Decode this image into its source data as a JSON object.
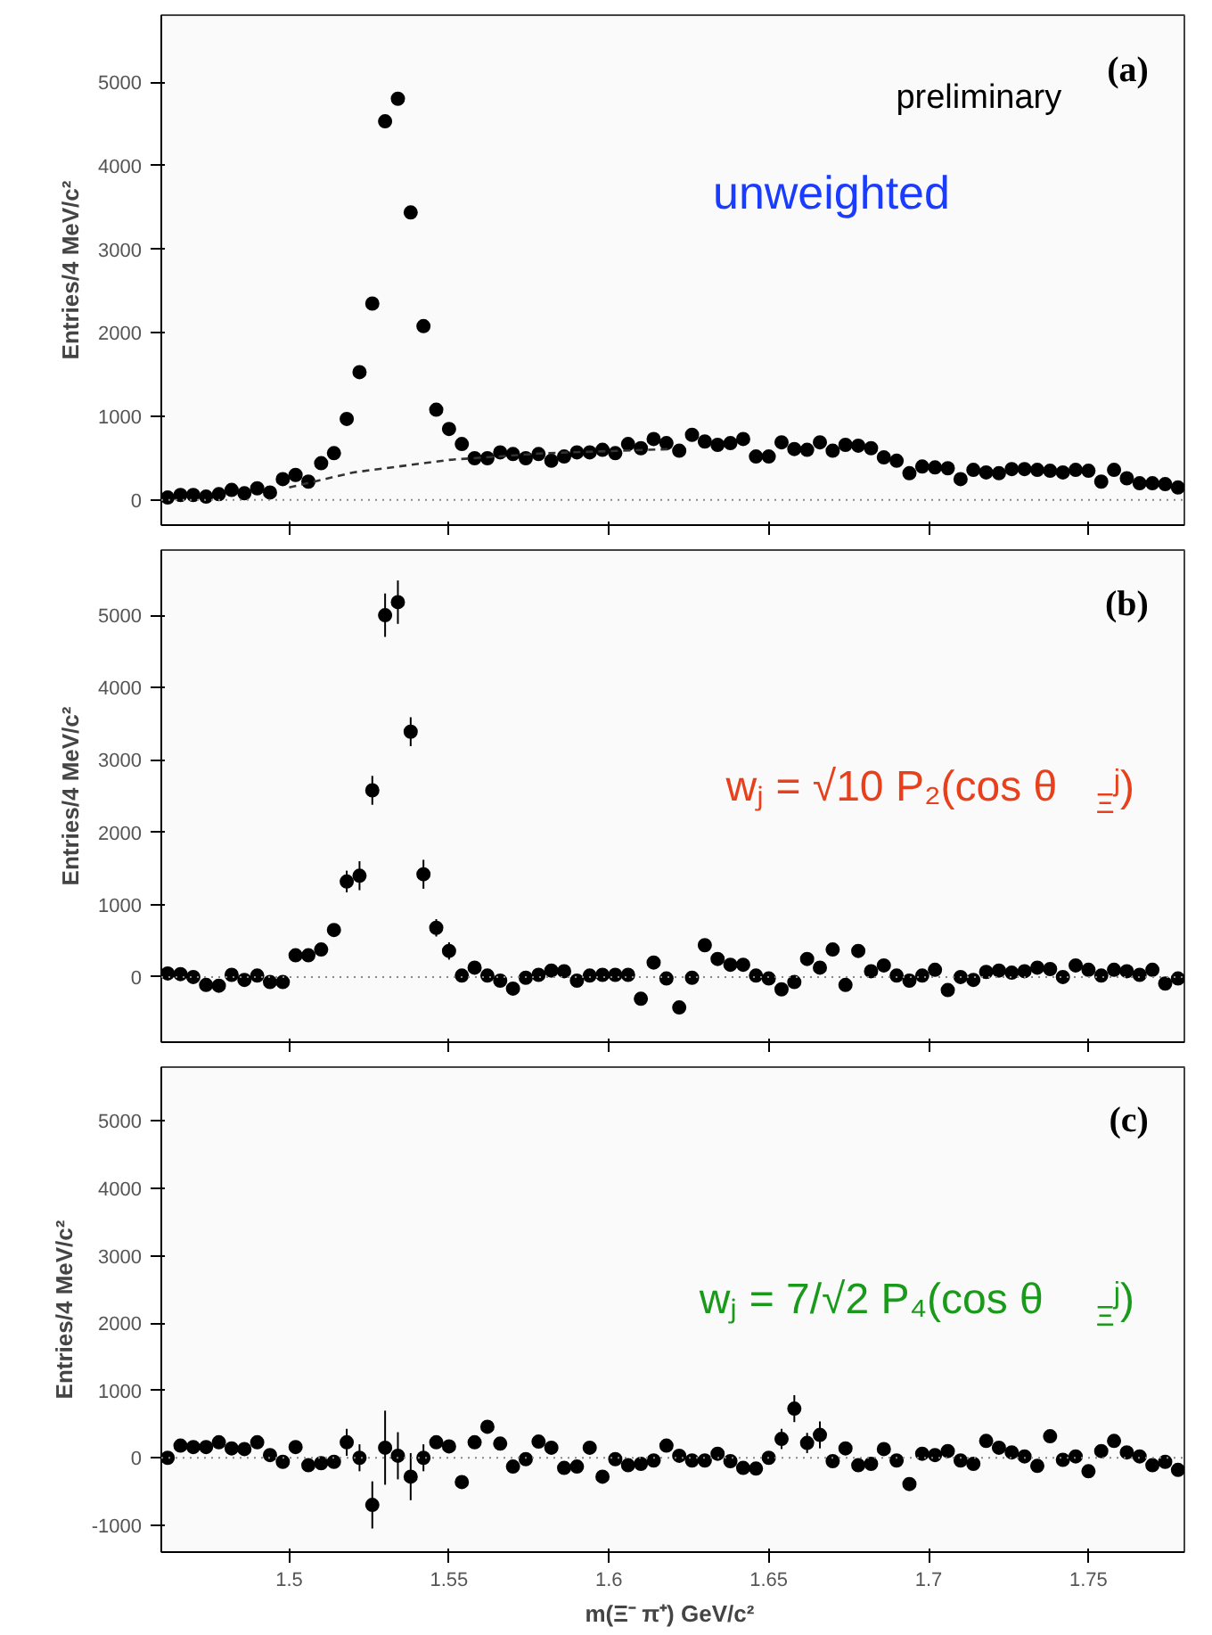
{
  "chart_data": [
    {
      "type": "scatter",
      "ylabel": "Entries/4 MeV/c²",
      "xlim": [
        1.46,
        1.78
      ],
      "ylim": [
        -300,
        5800
      ],
      "xticks": [
        1.5,
        1.55,
        1.6,
        1.65,
        1.7,
        1.75
      ],
      "yticks": [
        0,
        1000,
        2000,
        3000,
        4000,
        5000
      ],
      "tick_labels": "y",
      "marker": "circle",
      "grid": false,
      "annotations": [
        "(a)",
        "preliminary",
        "unweighted"
      ],
      "ref_lines": [
        {
          "axis": "y",
          "value": 0,
          "label": null,
          "color": "#888888",
          "line_style": "dotted"
        }
      ],
      "series": [
        {
          "color": "#000000",
          "x": [
            1.462,
            1.466,
            1.47,
            1.474,
            1.478,
            1.482,
            1.486,
            1.49,
            1.494,
            1.498,
            1.502,
            1.506,
            1.51,
            1.514,
            1.518,
            1.522,
            1.526,
            1.53,
            1.534,
            1.538,
            1.542,
            1.546,
            1.55,
            1.554,
            1.558,
            1.562,
            1.566,
            1.57,
            1.574,
            1.578,
            1.582,
            1.586,
            1.59,
            1.594,
            1.598,
            1.602,
            1.606,
            1.61,
            1.614,
            1.618,
            1.622,
            1.626,
            1.63,
            1.634,
            1.638,
            1.642,
            1.646,
            1.65,
            1.654,
            1.658,
            1.662,
            1.666,
            1.67,
            1.674,
            1.678,
            1.682,
            1.686,
            1.69,
            1.694,
            1.698,
            1.702,
            1.706,
            1.71,
            1.714,
            1.718,
            1.722,
            1.726,
            1.73,
            1.734,
            1.738,
            1.742,
            1.746,
            1.75,
            1.754,
            1.758,
            1.762,
            1.766,
            1.77,
            1.774,
            1.778
          ],
          "values": [
            30,
            60,
            60,
            40,
            70,
            120,
            80,
            140,
            90,
            250,
            300,
            220,
            440,
            560,
            970,
            1530,
            2350,
            4530,
            4800,
            3440,
            2080,
            1080,
            850,
            670,
            500,
            500,
            570,
            550,
            500,
            550,
            470,
            520,
            570,
            570,
            600,
            560,
            670,
            620,
            730,
            680,
            590,
            780,
            700,
            660,
            680,
            730,
            520,
            520,
            690,
            610,
            600,
            690,
            590,
            660,
            650,
            620,
            510,
            470,
            320,
            400,
            390,
            380,
            250,
            360,
            330,
            320,
            370,
            370,
            360,
            350,
            330,
            360,
            350,
            220,
            360,
            260,
            200,
            200,
            190,
            150
          ]
        },
        {
          "type": "line",
          "line_style": "dashed",
          "marker": "none",
          "color": "#333333",
          "x": [
            1.5,
            1.52,
            1.55,
            1.58,
            1.62
          ],
          "values": [
            150,
            330,
            480,
            560,
            610
          ]
        }
      ]
    },
    {
      "type": "scatter",
      "ylabel": "Entries/4 MeV/c²",
      "xlim": [
        1.46,
        1.78
      ],
      "ylim": [
        -900,
        5900
      ],
      "xticks": [
        1.5,
        1.55,
        1.6,
        1.65,
        1.7,
        1.75
      ],
      "yticks": [
        0,
        1000,
        2000,
        3000,
        4000,
        5000
      ],
      "tick_labels": "y",
      "marker": "circle",
      "grid": false,
      "annotations": [
        "(b)",
        "wⱼ = √10 P₂(cos θ$_{Ξ}$ʲ)"
      ],
      "ref_lines": [
        {
          "axis": "y",
          "value": 0,
          "label": null,
          "color": "#888888",
          "line_style": "dotted"
        }
      ],
      "series": [
        {
          "color": "#000000",
          "x": [
            1.462,
            1.466,
            1.47,
            1.474,
            1.478,
            1.482,
            1.486,
            1.49,
            1.494,
            1.498,
            1.502,
            1.506,
            1.51,
            1.514,
            1.518,
            1.522,
            1.526,
            1.53,
            1.534,
            1.538,
            1.542,
            1.546,
            1.55,
            1.554,
            1.558,
            1.562,
            1.566,
            1.57,
            1.574,
            1.578,
            1.582,
            1.586,
            1.59,
            1.594,
            1.598,
            1.602,
            1.606,
            1.61,
            1.614,
            1.618,
            1.622,
            1.626,
            1.63,
            1.634,
            1.638,
            1.642,
            1.646,
            1.65,
            1.654,
            1.658,
            1.662,
            1.666,
            1.67,
            1.674,
            1.678,
            1.682,
            1.686,
            1.69,
            1.694,
            1.698,
            1.702,
            1.706,
            1.71,
            1.714,
            1.718,
            1.722,
            1.726,
            1.73,
            1.734,
            1.738,
            1.742,
            1.746,
            1.75,
            1.754,
            1.758,
            1.762,
            1.766,
            1.77,
            1.774,
            1.778
          ],
          "values": [
            50,
            40,
            0,
            -110,
            -120,
            30,
            -40,
            20,
            -70,
            -70,
            300,
            300,
            380,
            650,
            1320,
            1400,
            2580,
            5000,
            5180,
            3390,
            1420,
            680,
            360,
            20,
            130,
            20,
            -50,
            -160,
            -10,
            30,
            90,
            80,
            -50,
            20,
            30,
            30,
            30,
            -300,
            200,
            -20,
            -420,
            -10,
            440,
            250,
            170,
            170,
            20,
            -20,
            -170,
            -70,
            250,
            130,
            380,
            -110,
            360,
            80,
            160,
            20,
            -50,
            20,
            100,
            -180,
            0,
            -40,
            70,
            90,
            60,
            80,
            130,
            110,
            0,
            160,
            100,
            20,
            100,
            80,
            30,
            100,
            -90,
            -20
          ],
          "errors": [
            null,
            null,
            null,
            null,
            null,
            null,
            null,
            null,
            null,
            null,
            null,
            null,
            null,
            null,
            150,
            200,
            200,
            300,
            300,
            200,
            200,
            120,
            120,
            null,
            null,
            null,
            null,
            null,
            null,
            null,
            null,
            null,
            null,
            null,
            null,
            null,
            null,
            null,
            null,
            null,
            null,
            null,
            null,
            null,
            null,
            null,
            null,
            null,
            null,
            null,
            null,
            null,
            null,
            null,
            null,
            null,
            null,
            null,
            null,
            null,
            null,
            null,
            null,
            null,
            null,
            null,
            null,
            null,
            null,
            null,
            null,
            null,
            null,
            null,
            null,
            null,
            null,
            null,
            null,
            null
          ]
        }
      ]
    },
    {
      "type": "scatter",
      "ylabel": "Entries/4 MeV/c²",
      "xlabel": "m(Ξ⁻ π⁺)  GeV/c²",
      "xlim": [
        1.46,
        1.78
      ],
      "ylim": [
        -1400,
        5800
      ],
      "xticks": [
        1.5,
        1.55,
        1.6,
        1.65,
        1.7,
        1.75
      ],
      "yticks": [
        -1000,
        0,
        1000,
        2000,
        3000,
        4000,
        5000
      ],
      "marker": "circle",
      "grid": false,
      "annotations": [
        "(c)",
        "wⱼ = 7/√2 P₄(cos θ$_{Ξ}$ʲ)"
      ],
      "ref_lines": [
        {
          "axis": "y",
          "value": 0,
          "label": null,
          "color": "#888888",
          "line_style": "dotted"
        }
      ],
      "series": [
        {
          "color": "#000000",
          "x": [
            1.462,
            1.466,
            1.47,
            1.474,
            1.478,
            1.482,
            1.486,
            1.49,
            1.494,
            1.498,
            1.502,
            1.506,
            1.51,
            1.514,
            1.518,
            1.522,
            1.526,
            1.53,
            1.534,
            1.538,
            1.542,
            1.546,
            1.55,
            1.554,
            1.558,
            1.562,
            1.566,
            1.57,
            1.574,
            1.578,
            1.582,
            1.586,
            1.59,
            1.594,
            1.598,
            1.602,
            1.606,
            1.61,
            1.614,
            1.618,
            1.622,
            1.626,
            1.63,
            1.634,
            1.638,
            1.642,
            1.646,
            1.65,
            1.654,
            1.658,
            1.662,
            1.666,
            1.67,
            1.674,
            1.678,
            1.682,
            1.686,
            1.69,
            1.694,
            1.698,
            1.702,
            1.706,
            1.71,
            1.714,
            1.718,
            1.722,
            1.726,
            1.73,
            1.734,
            1.738,
            1.742,
            1.746,
            1.75,
            1.754,
            1.758,
            1.762,
            1.766,
            1.77,
            1.774,
            1.778
          ],
          "values": [
            0,
            180,
            160,
            160,
            230,
            140,
            130,
            230,
            40,
            -60,
            160,
            -110,
            -80,
            -60,
            230,
            0,
            -700,
            150,
            30,
            -280,
            0,
            230,
            170,
            -360,
            230,
            460,
            210,
            -130,
            -20,
            240,
            150,
            -150,
            -130,
            150,
            -280,
            -20,
            -110,
            -90,
            -40,
            180,
            30,
            -40,
            -40,
            60,
            -50,
            -150,
            -160,
            0,
            280,
            730,
            220,
            340,
            -50,
            140,
            -110,
            -90,
            130,
            -40,
            -390,
            60,
            40,
            100,
            -40,
            -90,
            250,
            150,
            80,
            20,
            -120,
            320,
            -30,
            20,
            -200,
            100,
            250,
            80,
            20,
            -110,
            -60,
            -180
          ],
          "errors": [
            null,
            null,
            null,
            null,
            null,
            null,
            null,
            null,
            null,
            null,
            null,
            null,
            null,
            null,
            200,
            200,
            350,
            550,
            350,
            350,
            200,
            null,
            null,
            null,
            null,
            null,
            null,
            null,
            null,
            null,
            null,
            null,
            null,
            null,
            null,
            null,
            null,
            null,
            null,
            null,
            null,
            null,
            null,
            null,
            null,
            null,
            null,
            null,
            150,
            200,
            150,
            200,
            null,
            null,
            null,
            null,
            null,
            null,
            null,
            null,
            null,
            null,
            null,
            null,
            null,
            null,
            null,
            null,
            null,
            null,
            null,
            null,
            null,
            null,
            null,
            null,
            null,
            null,
            null,
            null
          ]
        }
      ]
    }
  ]
}
